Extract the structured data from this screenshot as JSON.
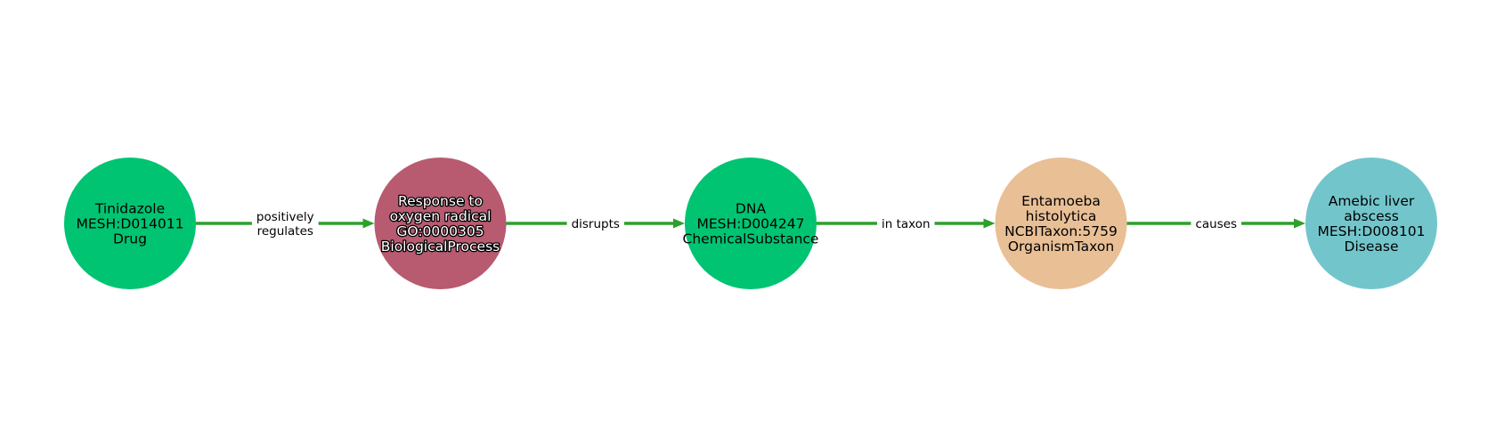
{
  "diagram": {
    "nodes": [
      {
        "id": "tinidazole",
        "lines": [
          "Tinidazole",
          "MESH:D014011",
          "Drug"
        ],
        "color": "#00c472",
        "text_style": "dark"
      },
      {
        "id": "response-to-oxygen-radical",
        "lines": [
          "Response to",
          "oxygen radical",
          "GO:0000305",
          "BiologicalProcess"
        ],
        "color": "#b85a70",
        "text_style": "light"
      },
      {
        "id": "dna",
        "lines": [
          "DNA",
          "MESH:D004247",
          "ChemicalSubstance"
        ],
        "color": "#00c472",
        "text_style": "dark"
      },
      {
        "id": "entamoeba-histolytica",
        "lines": [
          "Entamoeba",
          "histolytica",
          "NCBITaxon:5759",
          "OrganismTaxon"
        ],
        "color": "#e9bf96",
        "text_style": "dark"
      },
      {
        "id": "amebic-liver-abscess",
        "lines": [
          "Amebic liver",
          "abscess",
          "MESH:D008101",
          "Disease"
        ],
        "color": "#72c6cb",
        "text_style": "dark"
      }
    ],
    "edges": [
      {
        "from": 0,
        "to": 1,
        "label_lines": [
          "positively",
          "regulates"
        ]
      },
      {
        "from": 1,
        "to": 2,
        "label_lines": [
          "disrupts"
        ]
      },
      {
        "from": 2,
        "to": 3,
        "label_lines": [
          "in taxon"
        ]
      },
      {
        "from": 3,
        "to": 4,
        "label_lines": [
          "causes"
        ]
      }
    ],
    "edge_color": "#2ca02c"
  }
}
